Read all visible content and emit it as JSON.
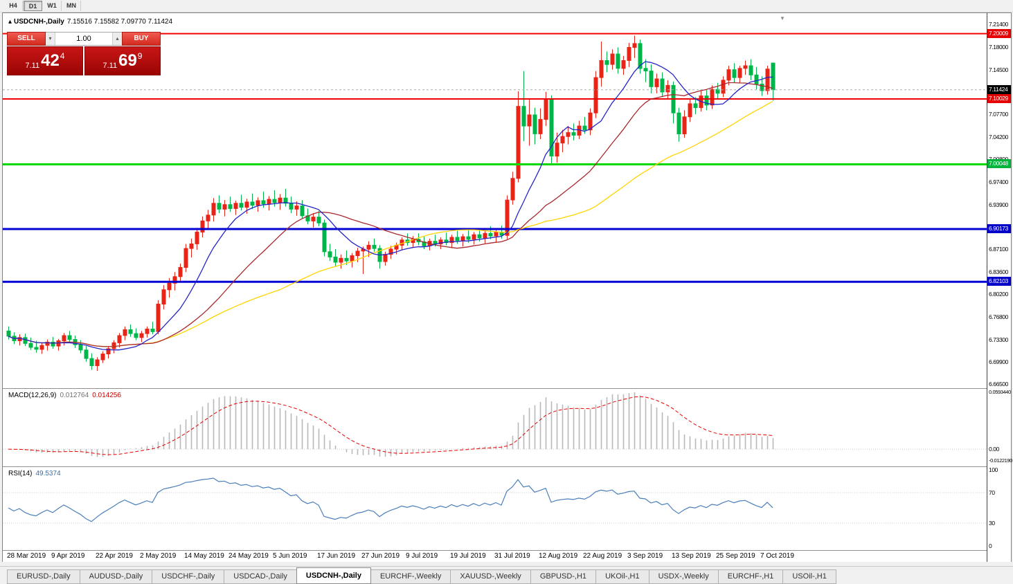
{
  "toolbar": {
    "periods": [
      {
        "label": "H4",
        "active": false
      },
      {
        "label": "D1",
        "active": true
      },
      {
        "label": "W1",
        "active": false
      },
      {
        "label": "MN",
        "active": false
      }
    ]
  },
  "window": {
    "title_symbol": "USDCNH-,Daily",
    "title_ohlc": "7.15516 7.15582 7.09770 7.11424",
    "collapse_arrow": "▴",
    "shift_marker": "▼"
  },
  "trade_panel": {
    "sell_label": "SELL",
    "buy_label": "BUY",
    "volume": "1.00",
    "spin_down": "▾",
    "spin_up": "▴",
    "sell_price": {
      "base": "7.11",
      "pips": "42",
      "point": "4"
    },
    "buy_price": {
      "base": "7.11",
      "pips": "69",
      "point": "9"
    }
  },
  "price_axis": {
    "labels": [
      "7.21400",
      "7.18000",
      "7.14500",
      "7.07700",
      "7.04200",
      "7.00800",
      "6.97400",
      "6.93900",
      "6.87100",
      "6.83600",
      "6.80200",
      "6.76800",
      "6.73300",
      "6.69900",
      "6.66500"
    ],
    "badges": [
      {
        "value": "7.20009",
        "color": "#e60000"
      },
      {
        "value": "7.11424",
        "color": "#000000"
      },
      {
        "value": "7.10029",
        "color": "#e60000"
      },
      {
        "value": "7.00048",
        "color": "#00b43c"
      },
      {
        "value": "6.90173",
        "color": "#0000c8"
      },
      {
        "value": "6.82103",
        "color": "#0000c8"
      }
    ]
  },
  "indicators": {
    "macd": {
      "name": "MACD(12,26,9)",
      "value_main": "0.012764",
      "value_signal": "0.014256",
      "scale_max": "0.0593440",
      "scale_zero": "0.00",
      "scale_min": "-0.0122190"
    },
    "rsi": {
      "name": "RSI(14)",
      "value": "49.5374",
      "levels": [
        100,
        70,
        30,
        0
      ]
    }
  },
  "chart_data": {
    "type": "candlestick",
    "symbol": "USDCNH-",
    "timeframe": "Daily",
    "y_range": [
      6.665,
      7.225
    ],
    "current_price": 7.11424,
    "colors": {
      "up": "#e52518",
      "down": "#00b44a"
    },
    "horizontal_lines": [
      {
        "price": 7.20009,
        "color": "#f00000",
        "width": 2
      },
      {
        "price": 7.10029,
        "color": "#f00000",
        "width": 2
      },
      {
        "price": 7.00048,
        "color": "#00d800",
        "width": 3
      },
      {
        "price": 6.90173,
        "color": "#0000d2",
        "width": 3
      },
      {
        "price": 6.82103,
        "color": "#0000d2",
        "width": 3
      }
    ],
    "moving_averages": [
      {
        "period": 50,
        "color": "#ffd400"
      },
      {
        "period": 25,
        "color": "#a8282e"
      },
      {
        "period": 10,
        "color": "#2424c8"
      }
    ],
    "x_tick_indices": [
      0,
      8,
      16,
      24,
      32,
      40,
      48,
      56,
      64,
      72,
      80,
      88,
      96,
      104,
      112,
      120,
      128,
      136
    ],
    "x_tick_labels": [
      "28 Mar 2019",
      "9 Apr 2019",
      "22 Apr 2019",
      "2 May 2019",
      "14 May 2019",
      "24 May 2019",
      "5 Jun 2019",
      "17 Jun 2019",
      "27 Jun 2019",
      "9 Jul 2019",
      "19 Jul 2019",
      "31 Jul 2019",
      "12 Aug 2019",
      "22 Aug 2019",
      "3 Sep 2019",
      "13 Sep 2019",
      "25 Sep 2019",
      "7 Oct 2019"
    ],
    "ohlc": [
      [
        6.746,
        6.753,
        6.733,
        6.738
      ],
      [
        6.738,
        6.744,
        6.726,
        6.731
      ],
      [
        6.731,
        6.741,
        6.724,
        6.736
      ],
      [
        6.736,
        6.742,
        6.723,
        6.727
      ],
      [
        6.727,
        6.736,
        6.717,
        6.721
      ],
      [
        6.721,
        6.731,
        6.713,
        6.718
      ],
      [
        6.718,
        6.728,
        6.711,
        6.724
      ],
      [
        6.724,
        6.733,
        6.716,
        6.729
      ],
      [
        6.729,
        6.737,
        6.719,
        6.723
      ],
      [
        6.723,
        6.734,
        6.716,
        6.731
      ],
      [
        6.731,
        6.743,
        6.724,
        6.739
      ],
      [
        6.739,
        6.746,
        6.728,
        6.733
      ],
      [
        6.733,
        6.739,
        6.72,
        6.725
      ],
      [
        6.725,
        6.732,
        6.712,
        6.717
      ],
      [
        6.717,
        6.723,
        6.699,
        6.704
      ],
      [
        6.704,
        6.712,
        6.687,
        6.693
      ],
      [
        6.693,
        6.706,
        6.685,
        6.702
      ],
      [
        6.702,
        6.715,
        6.697,
        6.711
      ],
      [
        6.711,
        6.723,
        6.704,
        6.719
      ],
      [
        6.719,
        6.732,
        6.712,
        6.728
      ],
      [
        6.728,
        6.743,
        6.721,
        6.739
      ],
      [
        6.739,
        6.753,
        6.732,
        6.748
      ],
      [
        6.748,
        6.756,
        6.737,
        6.742
      ],
      [
        6.742,
        6.75,
        6.732,
        6.736
      ],
      [
        6.736,
        6.746,
        6.729,
        6.742
      ],
      [
        6.742,
        6.753,
        6.736,
        6.749
      ],
      [
        6.749,
        6.76,
        6.741,
        6.745
      ],
      [
        6.745,
        6.793,
        6.741,
        6.787
      ],
      [
        6.787,
        6.816,
        6.779,
        6.809
      ],
      [
        6.809,
        6.827,
        6.797,
        6.819
      ],
      [
        6.819,
        6.836,
        6.808,
        6.829
      ],
      [
        6.829,
        6.849,
        6.82,
        6.843
      ],
      [
        6.843,
        6.879,
        6.836,
        6.872
      ],
      [
        6.872,
        6.887,
        6.858,
        6.879
      ],
      [
        6.879,
        6.903,
        6.87,
        6.897
      ],
      [
        6.897,
        6.921,
        6.889,
        6.914
      ],
      [
        6.914,
        6.931,
        6.903,
        6.923
      ],
      [
        6.923,
        6.949,
        6.913,
        6.941
      ],
      [
        6.941,
        6.953,
        6.926,
        6.932
      ],
      [
        6.932,
        6.946,
        6.921,
        6.939
      ],
      [
        6.939,
        6.951,
        6.928,
        6.933
      ],
      [
        6.933,
        6.945,
        6.923,
        6.941
      ],
      [
        6.941,
        6.954,
        6.93,
        6.935
      ],
      [
        6.935,
        6.948,
        6.925,
        6.943
      ],
      [
        6.943,
        6.956,
        6.932,
        6.938
      ],
      [
        6.938,
        6.95,
        6.928,
        6.945
      ],
      [
        6.945,
        6.959,
        6.934,
        6.94
      ],
      [
        6.94,
        6.952,
        6.93,
        6.947
      ],
      [
        6.947,
        6.961,
        6.936,
        6.942
      ],
      [
        6.942,
        6.955,
        6.931,
        6.949
      ],
      [
        6.949,
        6.963,
        6.936,
        6.941
      ],
      [
        6.941,
        6.951,
        6.926,
        6.932
      ],
      [
        6.932,
        6.944,
        6.922,
        6.937
      ],
      [
        6.937,
        6.946,
        6.917,
        6.922
      ],
      [
        6.922,
        6.933,
        6.909,
        6.914
      ],
      [
        6.914,
        6.926,
        6.904,
        6.92
      ],
      [
        6.92,
        6.929,
        6.906,
        6.911
      ],
      [
        6.911,
        6.916,
        6.86,
        6.867
      ],
      [
        6.867,
        6.879,
        6.853,
        6.859
      ],
      [
        6.859,
        6.871,
        6.845,
        6.851
      ],
      [
        6.851,
        6.863,
        6.841,
        6.857
      ],
      [
        6.857,
        6.869,
        6.847,
        6.853
      ],
      [
        6.853,
        6.865,
        6.843,
        6.861
      ],
      [
        6.861,
        6.873,
        6.851,
        6.868
      ],
      [
        6.868,
        6.875,
        6.833,
        6.871
      ],
      [
        6.871,
        6.883,
        6.859,
        6.877
      ],
      [
        6.877,
        6.887,
        6.867,
        6.872
      ],
      [
        6.872,
        6.877,
        6.841,
        6.852
      ],
      [
        6.852,
        6.867,
        6.846,
        6.863
      ],
      [
        6.863,
        6.876,
        6.856,
        6.871
      ],
      [
        6.871,
        6.881,
        6.863,
        6.877
      ],
      [
        6.877,
        6.889,
        6.869,
        6.885
      ],
      [
        6.885,
        6.895,
        6.876,
        6.881
      ],
      [
        6.881,
        6.891,
        6.873,
        6.886
      ],
      [
        6.886,
        6.895,
        6.877,
        6.882
      ],
      [
        6.882,
        6.891,
        6.871,
        6.876
      ],
      [
        6.876,
        6.887,
        6.869,
        6.883
      ],
      [
        6.883,
        6.893,
        6.875,
        6.879
      ],
      [
        6.879,
        6.889,
        6.871,
        6.885
      ],
      [
        6.885,
        6.896,
        6.877,
        6.881
      ],
      [
        6.881,
        6.893,
        6.873,
        6.889
      ],
      [
        6.889,
        6.899,
        6.879,
        6.884
      ],
      [
        6.884,
        6.894,
        6.875,
        6.89
      ],
      [
        6.89,
        6.901,
        6.881,
        6.886
      ],
      [
        6.886,
        6.897,
        6.878,
        6.893
      ],
      [
        6.893,
        6.903,
        6.883,
        6.888
      ],
      [
        6.888,
        6.899,
        6.88,
        6.895
      ],
      [
        6.895,
        6.906,
        6.886,
        6.891
      ],
      [
        6.891,
        6.901,
        6.881,
        6.897
      ],
      [
        6.897,
        6.907,
        6.887,
        6.892
      ],
      [
        6.892,
        6.953,
        6.886,
        6.946
      ],
      [
        6.946,
        6.989,
        6.939,
        6.979
      ],
      [
        6.979,
        7.112,
        6.973,
        7.089
      ],
      [
        7.089,
        7.143,
        7.036,
        7.059
      ],
      [
        7.059,
        7.099,
        7.029,
        7.076
      ],
      [
        7.076,
        7.087,
        7.031,
        7.047
      ],
      [
        7.047,
        7.086,
        7.039,
        7.069
      ],
      [
        7.069,
        7.111,
        7.059,
        7.099
      ],
      [
        7.099,
        7.106,
        6.999,
        7.013
      ],
      [
        7.013,
        7.049,
        7.003,
        7.033
      ],
      [
        7.033,
        7.053,
        7.019,
        7.043
      ],
      [
        7.043,
        7.059,
        7.031,
        7.049
      ],
      [
        7.049,
        7.063,
        7.037,
        7.045
      ],
      [
        7.045,
        7.067,
        7.039,
        7.059
      ],
      [
        7.059,
        7.073,
        7.047,
        7.053
      ],
      [
        7.053,
        7.086,
        7.045,
        7.079
      ],
      [
        7.079,
        7.143,
        7.071,
        7.133
      ],
      [
        7.133,
        7.188,
        7.119,
        7.159
      ],
      [
        7.159,
        7.173,
        7.141,
        7.153
      ],
      [
        7.153,
        7.176,
        7.145,
        7.169
      ],
      [
        7.169,
        7.179,
        7.139,
        7.147
      ],
      [
        7.147,
        7.166,
        7.137,
        7.159
      ],
      [
        7.159,
        7.186,
        7.149,
        7.179
      ],
      [
        7.179,
        7.197,
        7.163,
        7.185
      ],
      [
        7.185,
        7.191,
        7.139,
        7.147
      ],
      [
        7.147,
        7.161,
        7.126,
        7.143
      ],
      [
        7.143,
        7.153,
        7.109,
        7.119
      ],
      [
        7.119,
        7.139,
        7.109,
        7.131
      ],
      [
        7.131,
        7.141,
        7.103,
        7.111
      ],
      [
        7.111,
        7.129,
        7.101,
        7.121
      ],
      [
        7.121,
        7.127,
        7.063,
        7.079
      ],
      [
        7.079,
        7.087,
        7.035,
        7.047
      ],
      [
        7.047,
        7.083,
        7.041,
        7.073
      ],
      [
        7.073,
        7.101,
        7.065,
        7.093
      ],
      [
        7.093,
        7.103,
        7.077,
        7.087
      ],
      [
        7.087,
        7.113,
        7.081,
        7.105
      ],
      [
        7.105,
        7.115,
        7.083,
        7.091
      ],
      [
        7.091,
        7.121,
        7.085,
        7.115
      ],
      [
        7.115,
        7.125,
        7.099,
        7.109
      ],
      [
        7.109,
        7.135,
        7.103,
        7.129
      ],
      [
        7.129,
        7.151,
        7.121,
        7.145
      ],
      [
        7.145,
        7.155,
        7.125,
        7.133
      ],
      [
        7.133,
        7.151,
        7.125,
        7.147
      ],
      [
        7.147,
        7.159,
        7.137,
        7.151
      ],
      [
        7.151,
        7.161,
        7.129,
        7.137
      ],
      [
        7.137,
        7.149,
        7.115,
        7.123
      ],
      [
        7.123,
        7.135,
        7.105,
        7.113
      ],
      [
        7.113,
        7.151,
        7.107,
        7.146
      ],
      [
        7.15516,
        7.15582,
        7.0977,
        7.11424
      ]
    ]
  },
  "market_watch_tabs": [
    {
      "label": "EURUSD-,Daily",
      "active": false
    },
    {
      "label": "AUDUSD-,Daily",
      "active": false
    },
    {
      "label": "USDCHF-,Daily",
      "active": false
    },
    {
      "label": "USDCAD-,Daily",
      "active": false
    },
    {
      "label": "USDCNH-,Daily",
      "active": true
    },
    {
      "label": "EURCHF-,Weekly",
      "active": false
    },
    {
      "label": "XAUUSD-,Weekly",
      "active": false
    },
    {
      "label": "GBPUSD-,H1",
      "active": false
    },
    {
      "label": "UKOil-,H1",
      "active": false
    },
    {
      "label": "USDX-,Weekly",
      "active": false
    },
    {
      "label": "EURCHF-,H1",
      "active": false
    },
    {
      "label": "USOil-,H1",
      "active": false
    }
  ]
}
